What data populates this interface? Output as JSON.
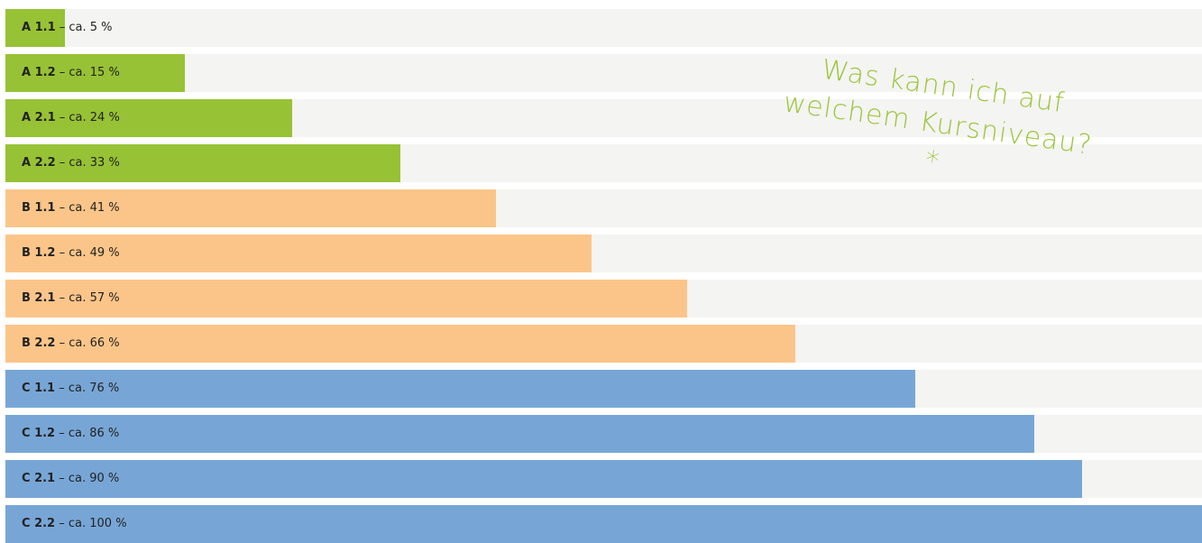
{
  "chart_data": {
    "type": "hbar",
    "title": "Was kann ich auf welchem Kursniveau?*",
    "categories": [
      "A 1.1",
      "A 1.2",
      "A 2.1",
      "A 2.2",
      "B 1.1",
      "B 1.2",
      "B 2.1",
      "B 2.2",
      "C 1.1",
      "C 1.2",
      "C 2.1",
      "C 2.2"
    ],
    "values": [
      5,
      15,
      24,
      33,
      41,
      49,
      57,
      66,
      76,
      86,
      90,
      100
    ],
    "value_labels": [
      "– ca. 5 %",
      "– ca. 15 %",
      "– ca. 24 %",
      "– ca. 33 %",
      "– ca. 41 %",
      "– ca. 49 %",
      "– ca. 57 %",
      "– ca. 66 %",
      "– ca. 76 %",
      "– ca. 86 %",
      "– ca. 90 %",
      "– ca. 100 %"
    ],
    "colors": [
      "#97c235",
      "#97c235",
      "#97c235",
      "#97c235",
      "#fbc589",
      "#fbc589",
      "#fbc589",
      "#fbc589",
      "#77a6d6",
      "#77a6d6",
      "#77a6d6",
      "#77a6d6"
    ],
    "track_color": "#f4f4f2",
    "title_color": "#9bc53d",
    "xlim": [
      0,
      100
    ]
  }
}
